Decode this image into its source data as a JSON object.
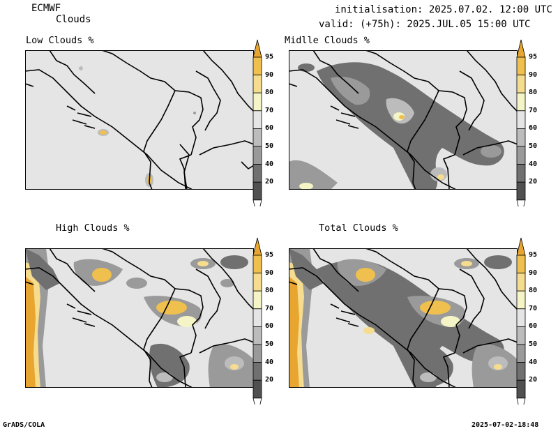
{
  "header": {
    "model": "ECMWF",
    "product": "Clouds",
    "initialisation": "initialisation: 2025.07.02. 12:00 UTC",
    "valid": "valid: (+75h): 2025.JUL.05 15:00 UTC"
  },
  "panels": [
    {
      "title": "Low Clouds %"
    },
    {
      "title": "Midlle Clouds %"
    },
    {
      "title": "High Clouds %"
    },
    {
      "title": "Total Clouds %"
    }
  ],
  "colorbar": {
    "levels": [
      "95",
      "90",
      "80",
      "70",
      "60",
      "50",
      "40",
      "20"
    ],
    "colors": [
      "#e8a631",
      "#f0c04e",
      "#f5dc8e",
      "#f4f4c6",
      "#e5e5e5",
      "#bcbcbc",
      "#9a9a9a",
      "#707070",
      "#505050",
      "#ffffff"
    ]
  },
  "footer": {
    "left": "GrADS/COLA",
    "right": "2025-07-02-18:48"
  }
}
